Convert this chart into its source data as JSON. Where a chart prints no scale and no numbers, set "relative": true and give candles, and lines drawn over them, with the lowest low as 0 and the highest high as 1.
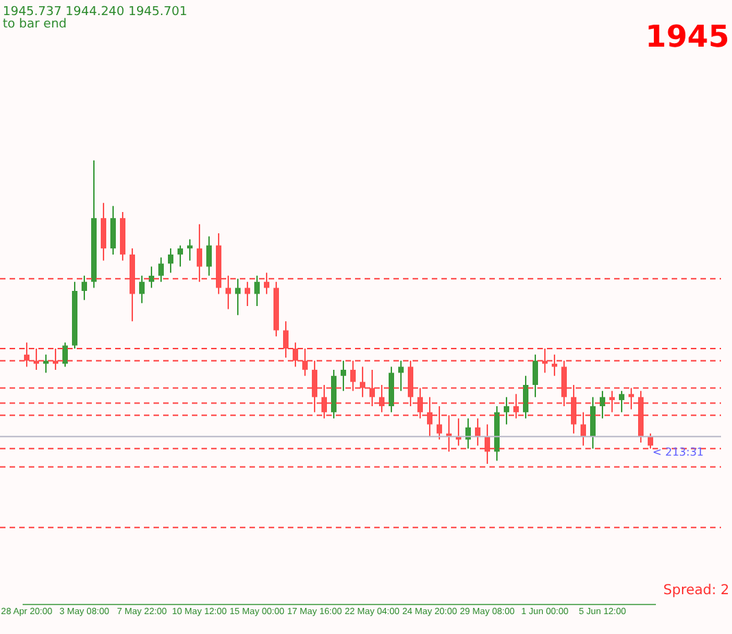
{
  "chart_data": {
    "type": "candlestick",
    "relative": true,
    "categories": [
      "28 Apr 20:00",
      null,
      null,
      null,
      null,
      null,
      "3 May 08:00",
      null,
      null,
      null,
      null,
      null,
      "7 May 22:00",
      null,
      null,
      null,
      null,
      null,
      "10 May 12:00",
      null,
      null,
      null,
      null,
      null,
      "15 May 00:00",
      null,
      null,
      null,
      null,
      null,
      "17 May 16:00",
      null,
      null,
      null,
      null,
      null,
      "22 May 04:00",
      null,
      null,
      null,
      null,
      null,
      "24 May 20:00",
      null,
      null,
      null,
      null,
      null,
      "29 May 08:00",
      null,
      null,
      null,
      null,
      null,
      "1 Jun 00:00",
      null,
      null,
      null,
      null,
      null,
      "5 Jun 12:00",
      null,
      null,
      null,
      null,
      null
    ],
    "ohlc": [
      [
        0.36,
        0.4,
        0.32,
        0.34
      ],
      [
        0.34,
        0.38,
        0.31,
        0.33
      ],
      [
        0.33,
        0.36,
        0.3,
        0.34
      ],
      [
        0.34,
        0.38,
        0.31,
        0.33
      ],
      [
        0.33,
        0.4,
        0.32,
        0.39
      ],
      [
        0.39,
        0.6,
        0.38,
        0.57
      ],
      [
        0.57,
        0.62,
        0.54,
        0.6
      ],
      [
        0.6,
        1.0,
        0.58,
        0.81
      ],
      [
        0.81,
        0.86,
        0.67,
        0.71
      ],
      [
        0.71,
        0.85,
        0.69,
        0.81
      ],
      [
        0.81,
        0.83,
        0.67,
        0.69
      ],
      [
        0.69,
        0.71,
        0.47,
        0.56
      ],
      [
        0.56,
        0.62,
        0.53,
        0.6
      ],
      [
        0.6,
        0.65,
        0.58,
        0.62
      ],
      [
        0.62,
        0.68,
        0.6,
        0.66
      ],
      [
        0.66,
        0.71,
        0.63,
        0.69
      ],
      [
        0.69,
        0.72,
        0.65,
        0.71
      ],
      [
        0.71,
        0.74,
        0.67,
        0.72
      ],
      [
        0.71,
        0.79,
        0.6,
        0.65
      ],
      [
        0.65,
        0.75,
        0.62,
        0.72
      ],
      [
        0.72,
        0.76,
        0.56,
        0.58
      ],
      [
        0.58,
        0.62,
        0.51,
        0.56
      ],
      [
        0.56,
        0.61,
        0.49,
        0.58
      ],
      [
        0.58,
        0.6,
        0.52,
        0.56
      ],
      [
        0.56,
        0.62,
        0.52,
        0.6
      ],
      [
        0.6,
        0.63,
        0.56,
        0.58
      ],
      [
        0.58,
        0.6,
        0.42,
        0.44
      ],
      [
        0.44,
        0.47,
        0.35,
        0.38
      ],
      [
        0.38,
        0.4,
        0.32,
        0.34
      ],
      [
        0.34,
        0.38,
        0.29,
        0.31
      ],
      [
        0.31,
        0.34,
        0.17,
        0.22
      ],
      [
        0.22,
        0.26,
        0.15,
        0.17
      ],
      [
        0.17,
        0.31,
        0.15,
        0.29
      ],
      [
        0.29,
        0.34,
        0.24,
        0.31
      ],
      [
        0.31,
        0.34,
        0.24,
        0.27
      ],
      [
        0.27,
        0.32,
        0.22,
        0.25
      ],
      [
        0.25,
        0.31,
        0.19,
        0.22
      ],
      [
        0.22,
        0.26,
        0.17,
        0.19
      ],
      [
        0.19,
        0.32,
        0.17,
        0.3
      ],
      [
        0.3,
        0.34,
        0.24,
        0.32
      ],
      [
        0.32,
        0.34,
        0.19,
        0.22
      ],
      [
        0.22,
        0.25,
        0.15,
        0.17
      ],
      [
        0.17,
        0.22,
        0.09,
        0.13
      ],
      [
        0.13,
        0.19,
        0.08,
        0.1
      ],
      [
        0.1,
        0.16,
        0.04,
        0.09
      ],
      [
        0.09,
        0.15,
        0.06,
        0.08
      ],
      [
        0.08,
        0.15,
        0.05,
        0.12
      ],
      [
        0.12,
        0.15,
        0.06,
        0.09
      ],
      [
        0.09,
        0.13,
        0.0,
        0.04
      ],
      [
        0.04,
        0.19,
        0.01,
        0.17
      ],
      [
        0.17,
        0.22,
        0.13,
        0.19
      ],
      [
        0.19,
        0.23,
        0.15,
        0.17
      ],
      [
        0.17,
        0.29,
        0.15,
        0.26
      ],
      [
        0.26,
        0.36,
        0.22,
        0.34
      ],
      [
        0.34,
        0.38,
        0.3,
        0.33
      ],
      [
        0.33,
        0.36,
        0.29,
        0.32
      ],
      [
        0.32,
        0.34,
        0.19,
        0.22
      ],
      [
        0.22,
        0.26,
        0.1,
        0.13
      ],
      [
        0.13,
        0.17,
        0.06,
        0.09
      ],
      [
        0.09,
        0.22,
        0.05,
        0.19
      ],
      [
        0.19,
        0.24,
        0.15,
        0.22
      ],
      [
        0.22,
        0.24,
        0.17,
        0.21
      ],
      [
        0.21,
        0.24,
        0.17,
        0.23
      ],
      [
        0.23,
        0.25,
        0.18,
        0.22
      ],
      [
        0.22,
        0.24,
        0.07,
        0.09
      ],
      [
        0.09,
        0.1,
        0.05,
        0.06
      ]
    ],
    "ref_lines": [
      {
        "axis": "y",
        "value": 0.61,
        "color": "#ff4040",
        "line_style": "dashed"
      },
      {
        "axis": "y",
        "value": 0.38,
        "color": "#ff4040",
        "line_style": "dashed"
      },
      {
        "axis": "y",
        "value": 0.34,
        "color": "#ff4040",
        "line_style": "dashed"
      },
      {
        "axis": "y",
        "value": 0.25,
        "color": "#ff4040",
        "line_style": "dashed"
      },
      {
        "axis": "y",
        "value": 0.2,
        "color": "#ff4040",
        "line_style": "dashed"
      },
      {
        "axis": "y",
        "value": 0.16,
        "color": "#ff4040",
        "line_style": "dashed"
      },
      {
        "axis": "y",
        "value": 0.09,
        "color": "#b8b8c8",
        "line_style": "solid"
      },
      {
        "axis": "y",
        "value": 0.05,
        "color": "#ff4040",
        "line_style": "dashed"
      },
      {
        "axis": "y",
        "value": -0.01,
        "color": "#ff4040",
        "line_style": "dashed"
      },
      {
        "axis": "y",
        "value": -0.21,
        "color": "#ff4040",
        "line_style": "dashed"
      }
    ],
    "annotations": [
      "1945.737 1944.240 1945.701",
      "to bar end",
      "1945",
      "< 213:31",
      "Spread: 2"
    ]
  }
}
